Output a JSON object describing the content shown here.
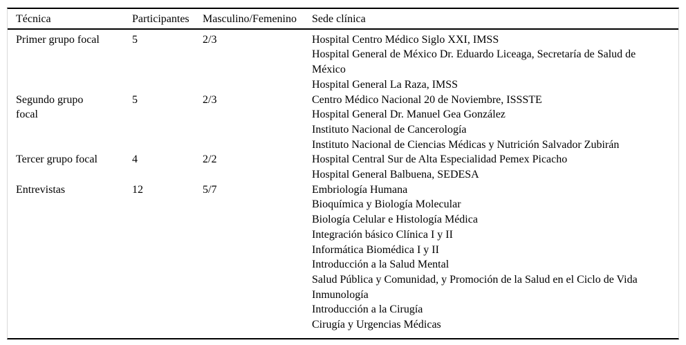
{
  "colors": {
    "border_dark": "#000000",
    "border_light": "#d9d9d9",
    "text": "#000000",
    "background": "#ffffff"
  },
  "table": {
    "columns": [
      {
        "key": "tecnica",
        "label": "Técnica"
      },
      {
        "key": "participantes",
        "label": "Participantes"
      },
      {
        "key": "masculino_femenino",
        "label": "Masculino/Femenino"
      },
      {
        "key": "sede_clinica",
        "label": "Sede clínica"
      }
    ],
    "rows": [
      {
        "tecnica_lines": [
          "Primer grupo focal"
        ],
        "participantes": "5",
        "masculino_femenino": "2/3",
        "sede_lines": [
          "Hospital Centro Médico Siglo XXI, IMSS",
          "Hospital General de México Dr. Eduardo Liceaga, Secretaría de Salud de",
          "México",
          "Hospital General La Raza, IMSS"
        ]
      },
      {
        "tecnica_lines": [
          "Segundo grupo",
          "focal"
        ],
        "participantes": "5",
        "masculino_femenino": "2/3",
        "sede_lines": [
          "Centro Médico Nacional 20 de Noviembre, ISSSTE",
          "Hospital General Dr. Manuel Gea González",
          "Instituto Nacional de Cancerología",
          "Instituto Nacional de Ciencias Médicas y Nutrición Salvador Zubirán"
        ]
      },
      {
        "tecnica_lines": [
          "Tercer grupo focal"
        ],
        "participantes": "4",
        "masculino_femenino": "2/2",
        "sede_lines": [
          "Hospital Central Sur de Alta Especialidad Pemex Picacho",
          "Hospital General Balbuena, SEDESA"
        ]
      },
      {
        "tecnica_lines": [
          "Entrevistas"
        ],
        "participantes": "12",
        "masculino_femenino": "5/7",
        "sede_lines": [
          "Embriología Humana",
          "Bioquímica y Biología Molecular",
          "Biología Celular e Histología Médica",
          "Integración básico Clínica I y II",
          "Informática Biomédica I y II",
          "Introducción a la Salud Mental",
          "Salud Pública y Comunidad, y Promoción de la Salud en el Ciclo de Vida",
          "Inmunología",
          "Introducción a la Cirugía",
          "Cirugía y Urgencias Médicas"
        ]
      }
    ]
  }
}
